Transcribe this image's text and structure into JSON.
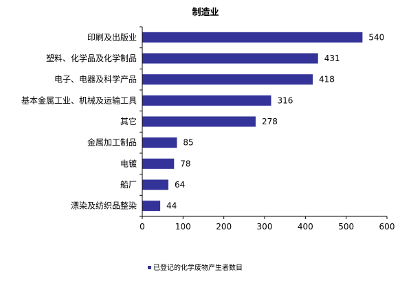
{
  "chart_data": {
    "type": "bar",
    "orientation": "horizontal",
    "title": "制造业",
    "categories": [
      "印刷及出版业",
      "塑料、化学品及化学制品",
      "电子、电器及科学产品",
      "基本金属工业、机械及运输工具",
      "其它",
      "金属加工制品",
      "电镀",
      "船厂",
      "漂染及纺织品整染"
    ],
    "series": [
      {
        "name": "已登记的化学废物产生者数目",
        "color": "#333399",
        "values": [
          540,
          431,
          418,
          316,
          278,
          85,
          78,
          64,
          44
        ]
      }
    ],
    "xlim": [
      0,
      600
    ],
    "xticks": [
      0,
      100,
      200,
      300,
      400,
      500,
      600
    ],
    "grid": false,
    "legend_position": "bottom",
    "data_labels": true
  }
}
